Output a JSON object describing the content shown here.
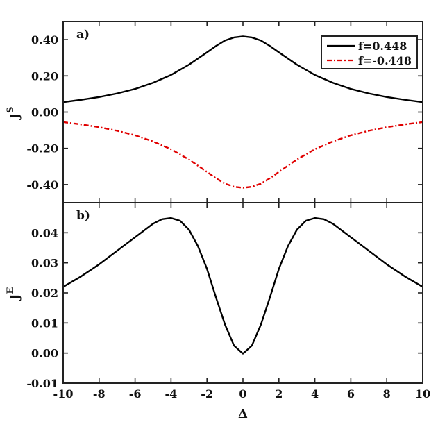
{
  "chart_data": [
    {
      "type": "line",
      "panel_label": "a)",
      "xlabel": "",
      "ylabel": "J",
      "ylabel_sup": "S",
      "xlim": [
        -10,
        10
      ],
      "ylim": [
        -0.5,
        0.5
      ],
      "xticks": [
        -10,
        -8,
        -6,
        -4,
        -2,
        0,
        2,
        4,
        6,
        8,
        10
      ],
      "yticks": [
        -0.4,
        -0.2,
        0.0,
        0.2,
        0.4
      ],
      "ytick_labels": [
        "-0.40",
        "-0.20",
        "0.00",
        "0.20",
        "0.40"
      ],
      "x_tick_labels_shown": false,
      "reference_line": {
        "y": 0.0,
        "style": "dashed",
        "color": "#000000"
      },
      "legend_position": "top-right",
      "series": [
        {
          "name": "f=0.448",
          "color": "#000000",
          "style": "solid",
          "x": [
            -10,
            -9,
            -8,
            -7,
            -6,
            -5,
            -4,
            -3,
            -2,
            -1.5,
            -1,
            -0.5,
            0,
            0.5,
            1,
            1.5,
            2,
            3,
            4,
            5,
            6,
            7,
            8,
            9,
            10
          ],
          "y": [
            0.055,
            0.068,
            0.083,
            0.103,
            0.128,
            0.162,
            0.205,
            0.262,
            0.33,
            0.365,
            0.395,
            0.412,
            0.418,
            0.412,
            0.395,
            0.365,
            0.33,
            0.262,
            0.205,
            0.162,
            0.128,
            0.103,
            0.083,
            0.068,
            0.055
          ]
        },
        {
          "name": "f=-0.448",
          "color": "#e00000",
          "style": "dashdot",
          "x": [
            -10,
            -9,
            -8,
            -7,
            -6,
            -5,
            -4,
            -3,
            -2,
            -1.5,
            -1,
            -0.5,
            0,
            0.5,
            1,
            1.5,
            2,
            3,
            4,
            5,
            6,
            7,
            8,
            9,
            10
          ],
          "y": [
            -0.055,
            -0.068,
            -0.083,
            -0.103,
            -0.128,
            -0.162,
            -0.205,
            -0.262,
            -0.33,
            -0.365,
            -0.395,
            -0.412,
            -0.418,
            -0.412,
            -0.395,
            -0.365,
            -0.33,
            -0.262,
            -0.205,
            -0.162,
            -0.128,
            -0.103,
            -0.083,
            -0.068,
            -0.055
          ]
        }
      ]
    },
    {
      "type": "line",
      "panel_label": "b)",
      "xlabel": "Δ",
      "ylabel": "J",
      "ylabel_sup": "E",
      "xlim": [
        -10,
        10
      ],
      "ylim": [
        -0.01,
        0.05
      ],
      "xticks": [
        -10,
        -8,
        -6,
        -4,
        -2,
        0,
        2,
        4,
        6,
        8,
        10
      ],
      "yticks": [
        -0.01,
        0.0,
        0.01,
        0.02,
        0.03,
        0.04
      ],
      "ytick_labels": [
        "-0.01",
        "0.00",
        "0.01",
        "0.02",
        "0.03",
        "0.04"
      ],
      "x_tick_labels_shown": true,
      "series": [
        {
          "color": "#000000",
          "style": "solid",
          "x": [
            -10,
            -9,
            -8,
            -7,
            -6,
            -5,
            -4.5,
            -4,
            -3.5,
            -3,
            -2.5,
            -2,
            -1.5,
            -1,
            -0.5,
            0,
            0.5,
            1,
            1.5,
            2,
            2.5,
            3,
            3.5,
            4,
            4.5,
            5,
            6,
            7,
            8,
            9,
            10
          ],
          "y": [
            0.022,
            0.0255,
            0.0295,
            0.034,
            0.0385,
            0.043,
            0.0445,
            0.0449,
            0.044,
            0.041,
            0.0355,
            0.028,
            0.0185,
            0.0095,
            0.0025,
            -0.0002,
            0.0025,
            0.0095,
            0.0185,
            0.028,
            0.0355,
            0.041,
            0.044,
            0.0449,
            0.0445,
            0.043,
            0.0385,
            0.034,
            0.0295,
            0.0255,
            0.022
          ]
        }
      ]
    }
  ]
}
